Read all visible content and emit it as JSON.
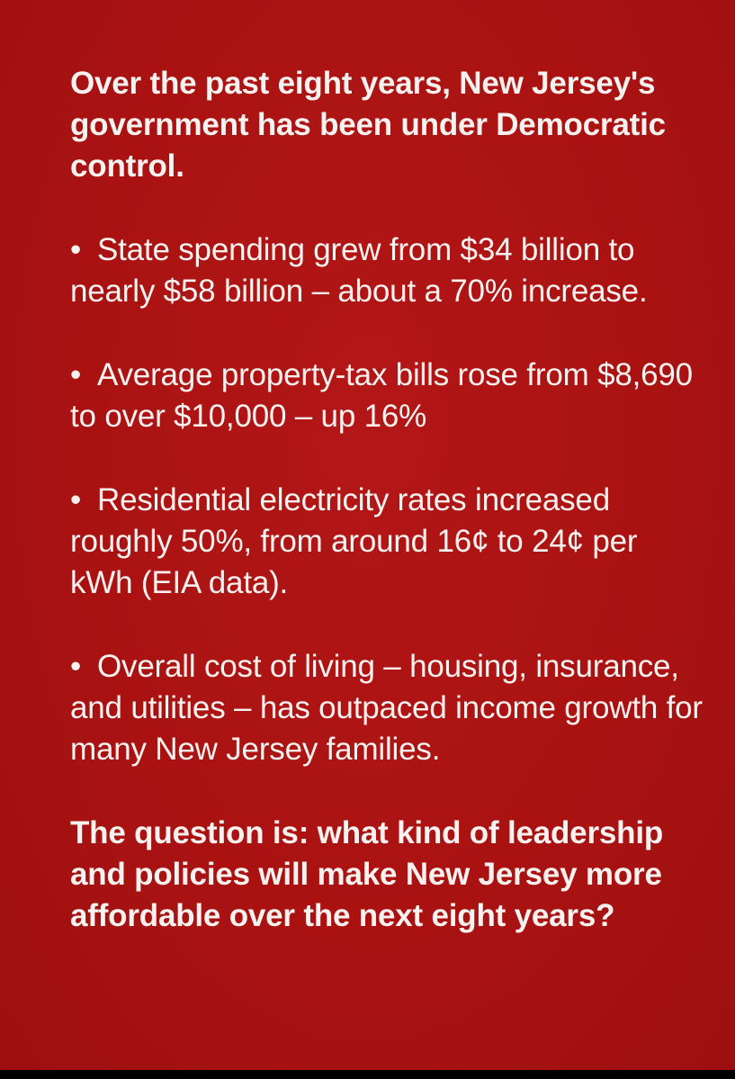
{
  "colors": {
    "background": "#ad1313",
    "text": "#f7f2ef",
    "bottom_bar": "#000000"
  },
  "intro": "Over the past eight years, New Jersey's government has been under Democratic control.",
  "bullets": [
    {
      "marker": "•",
      "text": "State spending grew from $34 billion to nearly $58 billion – about a 70% increase."
    },
    {
      "marker": "•",
      "text": "Average property-tax bills rose from $8,690 to over $10,000 – up 16%"
    },
    {
      "marker": "•",
      "text": "Residential electricity rates increased roughly 50%, from around 16¢ to 24¢ per kWh (EIA data)."
    },
    {
      "marker": "•",
      "text": "Overall cost of living – housing, insurance, and utilities – has outpaced income growth for many New Jersey families."
    }
  ],
  "closing": "The question is: what kind of leadership and policies will make New Jersey more affordable over the next eight years?"
}
